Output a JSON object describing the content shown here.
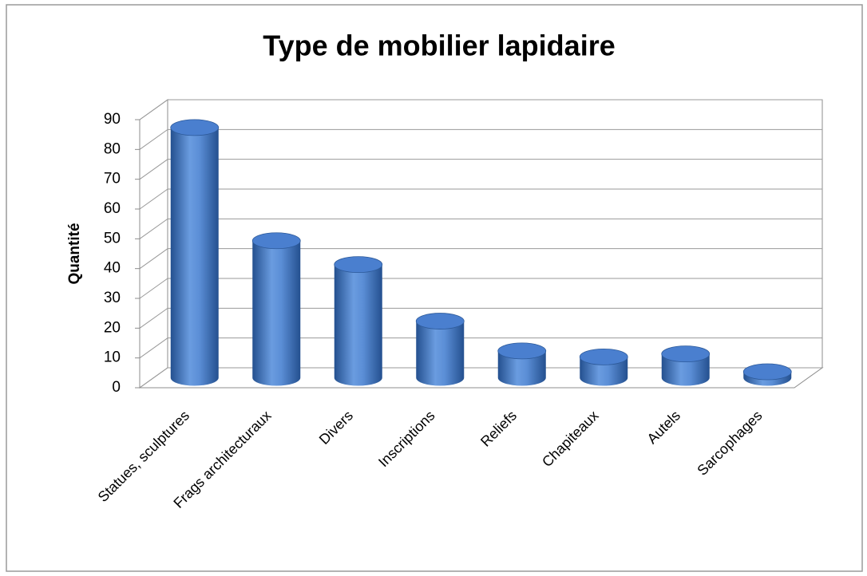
{
  "chart_data": {
    "type": "bar",
    "title": "Type de mobilier lapidaire",
    "y_label": "Quantité",
    "categories": [
      "Statues, sculptures",
      "Frags architecturaux",
      "Divers",
      "Inscriptions",
      "Reliefs",
      "Chapiteaux",
      "Autels",
      "Sarcophages"
    ],
    "values": [
      84,
      46,
      38,
      19,
      9,
      7,
      8,
      2
    ],
    "color": "#4a7fcf",
    "ylim": [
      0,
      90
    ],
    "yticks": [
      0,
      10,
      20,
      30,
      40,
      50,
      60,
      70,
      80,
      90
    ],
    "grid": true
  }
}
